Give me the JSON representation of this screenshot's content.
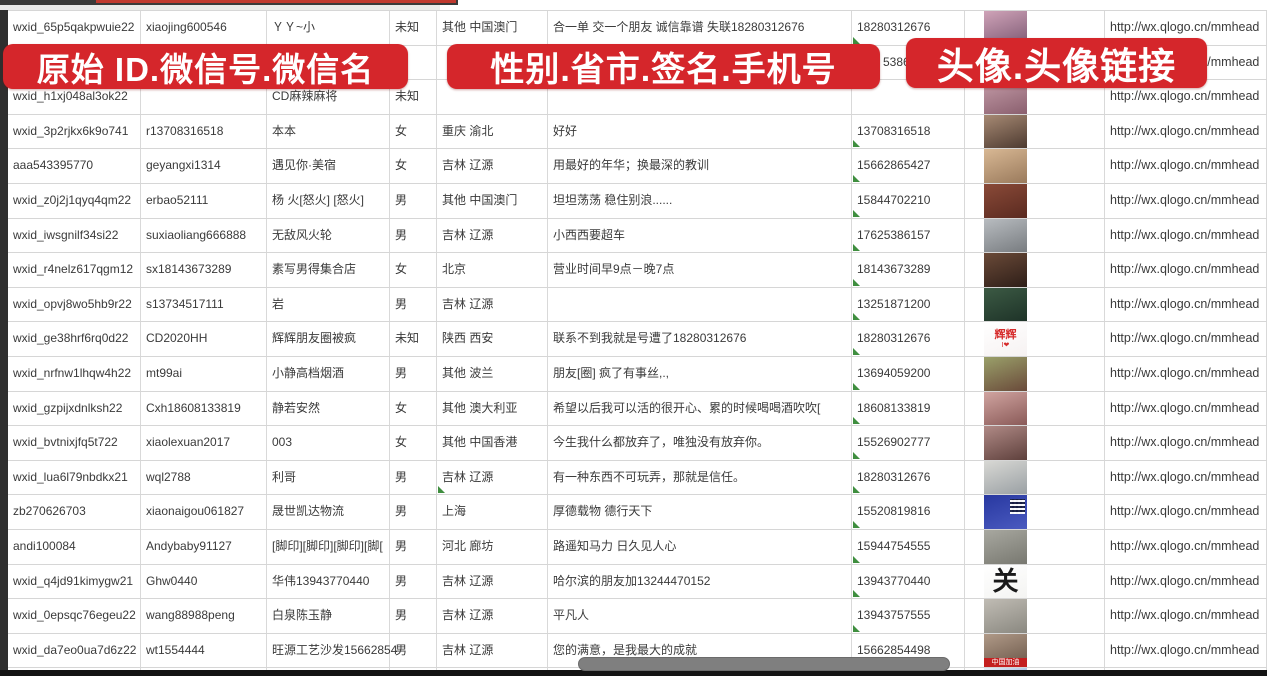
{
  "accent_color": "#d5262b",
  "banners": {
    "banner1": "原始 ID.微信号.微信名",
    "banner2": "性别.省市.签名.手机号",
    "banner3": "头像.头像链接",
    "background": "#d5262b",
    "text_color": "#ffffff"
  },
  "rows": [
    {
      "wxid": "wxid_65p5qakpwuie22",
      "wechat_id": "xiaojing600546",
      "name": "ＹＹ~小",
      "gender": "未知",
      "region": "其他 中国澳门",
      "signature": "合一单 交一个朋友 诚信靠谱 失联18280312676",
      "phone": "18280312676",
      "url": "http://wx.qlogo.cn/mmhead",
      "marks": {
        "phone": true
      },
      "avatar": {
        "desc": "portrait-photo-girl",
        "c1": "#cfa3b8",
        "c2": "#7e5a74"
      }
    },
    {
      "wxid": "",
      "wechat_id": "",
      "name": "",
      "gender": "",
      "region": "",
      "signature": "",
      "phone": "5386",
      "phone_indent": 31,
      "url": "http://wx.qlogo.cn/mmhead",
      "marks": {},
      "avatar": null
    },
    {
      "wxid": "wxid_h1xj048al3ok22",
      "wechat_id": "",
      "name": "CD麻辣麻将",
      "gender": "未知",
      "region": "",
      "signature": "",
      "phone": "",
      "url": "http://wx.qlogo.cn/mmhead",
      "marks": {},
      "avatar": {
        "desc": "portrait-photo-girl",
        "c1": "#c49ca8",
        "c2": "#8a5f6e"
      }
    },
    {
      "wxid": "wxid_3p2rjkx6k9o741",
      "wechat_id": "r13708316518",
      "name": "本本",
      "gender": "女",
      "region": "重庆 渝北",
      "signature": "好好",
      "phone": "13708316518",
      "url": "http://wx.qlogo.cn/mmhead",
      "marks": {
        "phone": true
      },
      "avatar": {
        "desc": "portrait-photo-woman-dark-hair",
        "c1": "#a78a74",
        "c2": "#4d3a30"
      }
    },
    {
      "wxid": "aaa543395770",
      "wechat_id": "geyangxi1314",
      "name": "遇见你·美宿",
      "gender": "女",
      "region": "吉林 辽源",
      "signature": "用最好的年华；换最深的教训",
      "phone": "15662865427",
      "url": "http://wx.qlogo.cn/mmhead",
      "marks": {
        "phone": true
      },
      "avatar": {
        "desc": "warm-tone-photo",
        "c1": "#d8b894",
        "c2": "#9a7a5c"
      }
    },
    {
      "wxid": "wxid_z0j2j1qyq4qm22",
      "wechat_id": "erbao52111",
      "name": "杨 火[怒火] [怒火]",
      "gender": "男",
      "region": "其他 中国澳门",
      "signature": "坦坦荡荡 稳住别浪......",
      "phone": "15844702210",
      "url": "http://wx.qlogo.cn/mmhead",
      "marks": {
        "phone": true
      },
      "avatar": {
        "desc": "dark-red-figurines-photo",
        "c1": "#8a4a38",
        "c2": "#5a2a20"
      }
    },
    {
      "wxid": "wxid_iwsgnilf34si22",
      "wechat_id": "suxiaoliang666888",
      "name": "无敌风火轮",
      "gender": "男",
      "region": "吉林 辽源",
      "signature": "小西西要超车",
      "phone": "17625386157",
      "url": "http://wx.qlogo.cn/mmhead",
      "marks": {
        "phone": true
      },
      "avatar": {
        "desc": "person-in-car-photo",
        "c1": "#b8bcc0",
        "c2": "#787c80"
      }
    },
    {
      "wxid": "wxid_r4nelz617qgm12",
      "wechat_id": "sx18143673289",
      "name": "素写男得集合店",
      "gender": "女",
      "region": "北京",
      "signature": "营业时间早9点－晚7点",
      "phone": "18143673289",
      "url": "http://wx.qlogo.cn/mmhead",
      "marks": {
        "phone": true
      },
      "avatar": {
        "desc": "dark-storefront-photo",
        "c1": "#6a4a38",
        "c2": "#2e1e18"
      }
    },
    {
      "wxid": "wxid_opvj8wo5hb9r22",
      "wechat_id": "s13734517111",
      "name": "岩",
      "gender": "男",
      "region": "吉林 辽源",
      "signature": "",
      "phone": "13251871200",
      "url": "http://wx.qlogo.cn/mmhead",
      "marks": {
        "phone": true
      },
      "avatar": {
        "desc": "dark-green-poster",
        "c1": "#3c5a44",
        "c2": "#1e3328"
      }
    },
    {
      "wxid": "wxid_ge38hrf6rq0d22",
      "wechat_id": "CD2020HH",
      "name": "辉辉朋友圈被疯",
      "gender": "未知",
      "region": "陕西 西安",
      "signature": "联系不到我就是号遭了18280312676",
      "phone": "18280312676",
      "url": "http://wx.qlogo.cn/mmhead",
      "marks": {
        "phone": true
      },
      "avatar": {
        "desc": "white-card-red-text",
        "c1": "#ffffff",
        "c2": "#f6f2f2",
        "glyph": "辉辉",
        "glyph_color": "#d62b2b",
        "glyph_size": 11,
        "sub": "I❤",
        "sub_color": "#d62b2b"
      }
    },
    {
      "wxid": "wxid_nrfnw1lhqw4h22",
      "wechat_id": "mt99ai",
      "name": "小静高档烟酒",
      "gender": "男",
      "region": "其他 波兰",
      "signature": "朋友[圈] 疯了有事丝,.,",
      "phone": "13694059200",
      "url": "http://wx.qlogo.cn/mmhead",
      "marks": {
        "phone": true
      },
      "avatar": {
        "desc": "woman-sunglasses-photo",
        "c1": "#9aa06a",
        "c2": "#6a4a3a"
      }
    },
    {
      "wxid": "wxid_gzpijxdnlksh22",
      "wechat_id": "Cxh18608133819",
      "name": "静若安然",
      "gender": "女",
      "region": "其他 澳大利亚",
      "signature": "希望以后我可以活的很开心、累的时候喝喝酒吹吹[",
      "phone": "18608133819",
      "url": "http://wx.qlogo.cn/mmhead",
      "marks": {
        "phone": true
      },
      "avatar": {
        "desc": "selfie-photo",
        "c1": "#d0a4a0",
        "c2": "#8a5a58"
      }
    },
    {
      "wxid": "wxid_bvtnixjfq5t722",
      "wechat_id": "xiaolexuan2017",
      "name": "003",
      "gender": "女",
      "region": "其他 中国香港",
      "signature": "今生我什么都放弃了，唯独没有放弃你。",
      "phone": "15526902777",
      "url": "http://wx.qlogo.cn/mmhead",
      "marks": {
        "phone": true
      },
      "avatar": {
        "desc": "selfie-photo",
        "c1": "#b08a86",
        "c2": "#5e403c"
      }
    },
    {
      "wxid": "wxid_lua6l79nbdkx21",
      "wechat_id": "wql2788",
      "name": "利哥",
      "gender": "男",
      "region": "吉林 辽源",
      "signature": "有一种东西不可玩弄，那就是信任。",
      "phone": "18280312676",
      "url": "http://wx.qlogo.cn/mmhead",
      "marks": {
        "phone": true,
        "region": true
      },
      "avatar": {
        "desc": "person-light-photo",
        "c1": "#d8d8d4",
        "c2": "#9aa0a4"
      }
    },
    {
      "wxid": "zb270626703",
      "wechat_id": "xiaonaigou061827",
      "name": "晟世凯达物流",
      "gender": "男",
      "region": "上海",
      "signature": "厚德载物 德行天下",
      "phone": "15520819816",
      "url": "http://wx.qlogo.cn/mmhead",
      "marks": {
        "phone": true
      },
      "avatar": {
        "desc": "blue-logo-qr-image",
        "c1": "#2838a0",
        "c2": "#4a5ac0",
        "qr": true
      }
    },
    {
      "wxid": "andi100084",
      "wechat_id": "Andybaby91127",
      "name": "[脚印][脚印][脚印][脚[",
      "gender": "男",
      "region": "河北 廊坊",
      "signature": "路遥知马力 日久见人心",
      "phone": "15944754555",
      "url": "http://wx.qlogo.cn/mmhead",
      "marks": {
        "phone": true
      },
      "avatar": {
        "desc": "gray-steps-photo",
        "c1": "#a8a8a0",
        "c2": "#787870"
      }
    },
    {
      "wxid": "wxid_q4jd91kimygw21",
      "wechat_id": "Ghw0440",
      "name": "华伟13943770440",
      "gender": "男",
      "region": "吉林 辽源",
      "signature": "哈尔滨的朋友加13244470152",
      "phone": "13943770440",
      "url": "http://wx.qlogo.cn/mmhead",
      "marks": {
        "phone": true
      },
      "avatar": {
        "desc": "calligraphy-character",
        "c1": "#ffffff",
        "c2": "#f4f4f2",
        "glyph": "关",
        "glyph_color": "#1a1a1a",
        "glyph_size": 26
      }
    },
    {
      "wxid": "wxid_0epsqc76egeu22",
      "wechat_id": "wang88988peng",
      "name": "白泉陈玉静",
      "gender": "男",
      "region": "吉林 辽源",
      "signature": "平凡人",
      "phone": "13943757555",
      "url": "http://wx.qlogo.cn/mmhead",
      "marks": {
        "phone": true
      },
      "avatar": {
        "desc": "light-gray-photo",
        "c1": "#c0bcb4",
        "c2": "#8a8880"
      }
    },
    {
      "wxid": "wxid_da7eo0ua7d6z22",
      "wechat_id": "wt1554444",
      "name": "旺源工艺沙发15662854",
      "gender": "男",
      "region": "吉林 辽源",
      "signature": "您的满意，是我最大的成就",
      "phone": "15662854498",
      "url": "http://wx.qlogo.cn/mmhead",
      "marks": {
        "phone": true
      },
      "avatar": {
        "desc": "photo-with-red-banner",
        "c1": "#b09a88",
        "c2": "#6a5648",
        "badge": "中国加油",
        "badge_color": "#c41f1f"
      }
    },
    {
      "wxid": "",
      "wechat_id": "",
      "name": "",
      "gender": "",
      "region": "",
      "signature": "",
      "phone": "",
      "url": "",
      "marks": {
        "phone": true
      },
      "avatar": {
        "desc": "cartoon-avatar",
        "c1": "#e8eef6",
        "c2": "#4a78c0"
      }
    }
  ]
}
